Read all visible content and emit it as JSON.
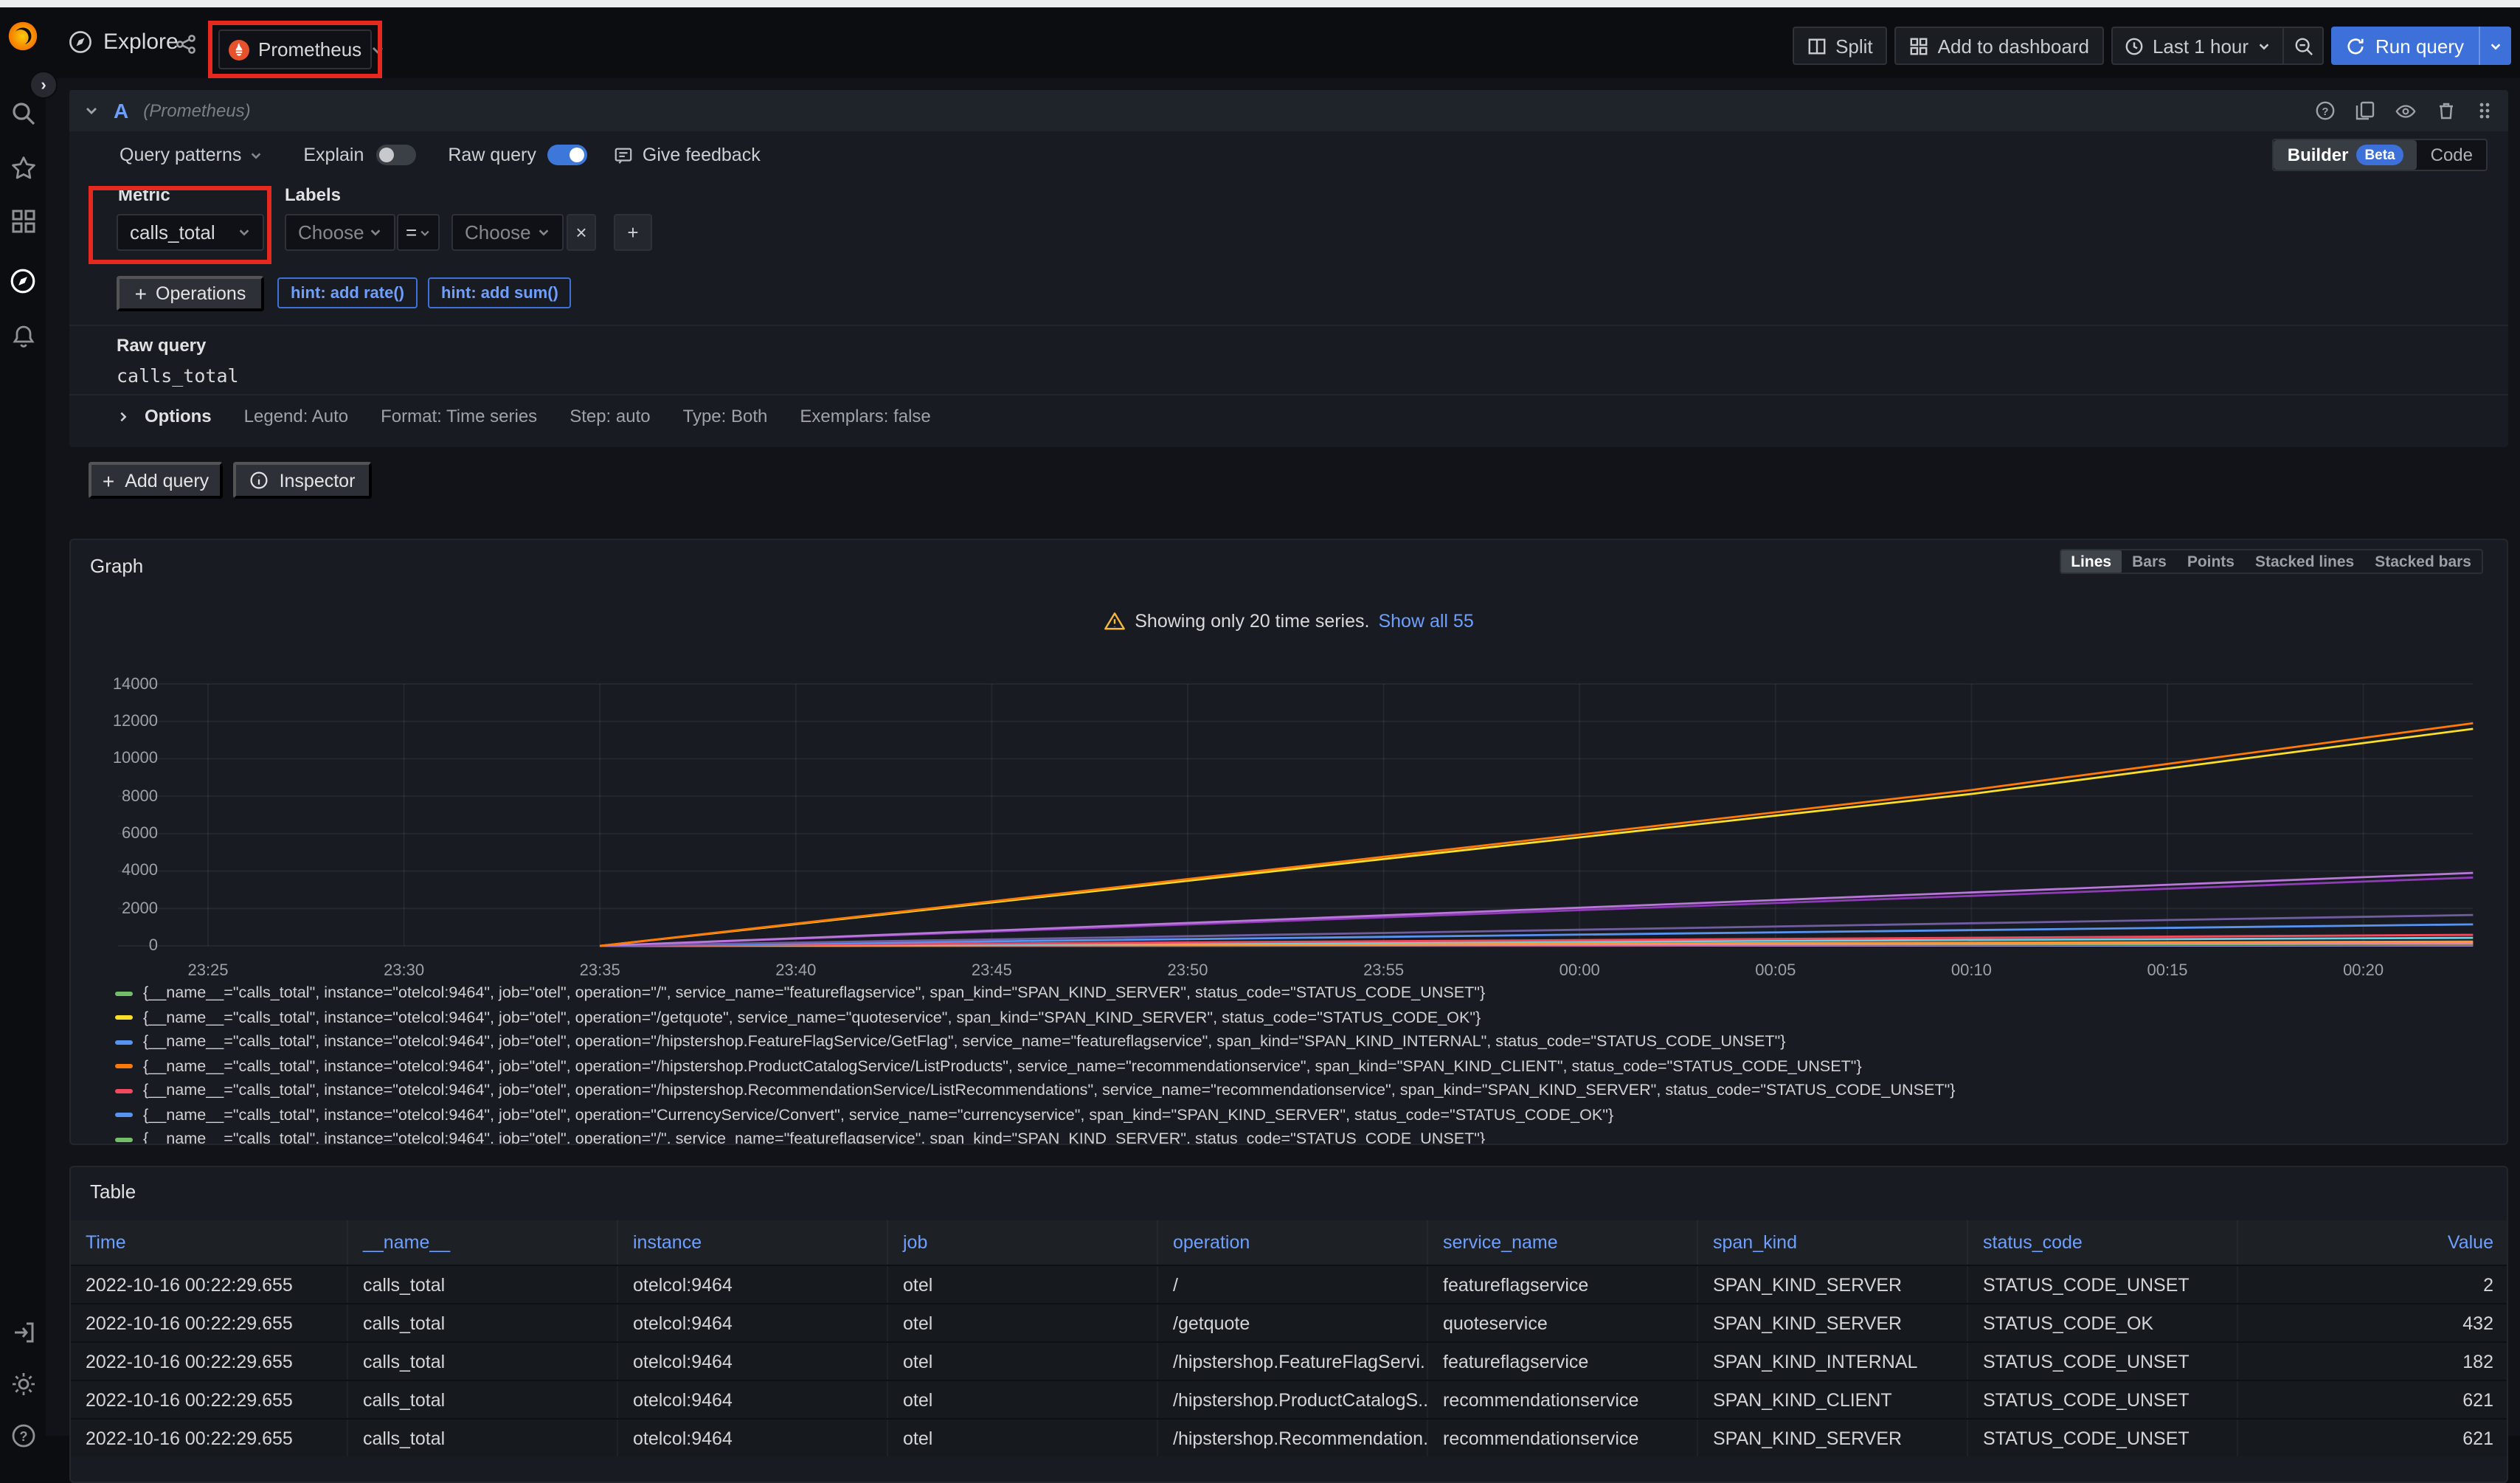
{
  "nav": {
    "title": "Explore",
    "datasource": "Prometheus",
    "split": "Split",
    "add_to_dashboard": "Add to dashboard",
    "time_range": "Last 1 hour",
    "run_query": "Run query"
  },
  "query": {
    "ref_id": "A",
    "ds_hint": "(Prometheus)",
    "query_patterns": "Query patterns",
    "explain": "Explain",
    "raw_query_toggle": "Raw query",
    "give_feedback": "Give feedback",
    "builder": "Builder",
    "beta": "Beta",
    "code": "Code",
    "metric_label": "Metric",
    "metric_value": "calls_total",
    "labels_label": "Labels",
    "choose_placeholder": "Choose",
    "equals": "=",
    "operations": "Operations",
    "hints": [
      "hint: add rate()",
      "hint: add sum()"
    ],
    "raw_query_title": "Raw query",
    "raw_query_text": "calls_total",
    "options_title": "Options",
    "options_summary": [
      "Legend: Auto",
      "Format: Time series",
      "Step: auto",
      "Type: Both",
      "Exemplars: false"
    ],
    "add_query": "Add query",
    "inspector": "Inspector"
  },
  "graph": {
    "title": "Graph",
    "modes": [
      "Lines",
      "Bars",
      "Points",
      "Stacked lines",
      "Stacked bars"
    ],
    "active_mode": "Lines",
    "warning_text": "Showing only 20 time series.",
    "warning_link": "Show all 55",
    "legend_partial_row": true,
    "legend": [
      {
        "color": "#73BF69",
        "text": "{__name__=\"calls_total\", instance=\"otelcol:9464\", job=\"otel\", operation=\"/\", service_name=\"featureflagservice\", span_kind=\"SPAN_KIND_SERVER\", status_code=\"STATUS_CODE_UNSET\"}"
      },
      {
        "color": "#FADE2A",
        "text": "{__name__=\"calls_total\", instance=\"otelcol:9464\", job=\"otel\", operation=\"/getquote\", service_name=\"quoteservice\", span_kind=\"SPAN_KIND_SERVER\", status_code=\"STATUS_CODE_OK\"}"
      },
      {
        "color": "#5794F2",
        "text": "{__name__=\"calls_total\", instance=\"otelcol:9464\", job=\"otel\", operation=\"/hipstershop.FeatureFlagService/GetFlag\", service_name=\"featureflagservice\", span_kind=\"SPAN_KIND_INTERNAL\", status_code=\"STATUS_CODE_UNSET\"}"
      },
      {
        "color": "#FF780A",
        "text": "{__name__=\"calls_total\", instance=\"otelcol:9464\", job=\"otel\", operation=\"/hipstershop.ProductCatalogService/ListProducts\", service_name=\"recommendationservice\", span_kind=\"SPAN_KIND_CLIENT\", status_code=\"STATUS_CODE_UNSET\"}"
      },
      {
        "color": "#F2495C",
        "text": "{__name__=\"calls_total\", instance=\"otelcol:9464\", job=\"otel\", operation=\"/hipstershop.RecommendationService/ListRecommendations\", service_name=\"recommendationservice\", span_kind=\"SPAN_KIND_SERVER\", status_code=\"STATUS_CODE_UNSET\"}"
      },
      {
        "color": "#5794F2",
        "text": "{__name__=\"calls_total\", instance=\"otelcol:9464\", job=\"otel\", operation=\"CurrencyService/Convert\", service_name=\"currencyservice\", span_kind=\"SPAN_KIND_SERVER\", status_code=\"STATUS_CODE_OK\"}"
      }
    ]
  },
  "chart_data": {
    "type": "line",
    "title": "Graph",
    "x_ticks": [
      "23:25",
      "23:30",
      "23:35",
      "23:40",
      "23:45",
      "23:50",
      "23:55",
      "00:00",
      "00:05",
      "00:10",
      "00:15",
      "00:20"
    ],
    "x_tick_minutes": [
      0,
      5,
      10,
      15,
      20,
      25,
      30,
      35,
      40,
      45,
      50,
      55
    ],
    "y_ticks": [
      14000,
      12000,
      10000,
      8000,
      6000,
      4000,
      2000,
      0
    ],
    "ylim": [
      0,
      14000
    ],
    "domain_minutes": [
      -2.3,
      57.8
    ],
    "grid": true,
    "legend_position": "bottom",
    "note": "counter series, ~0 until 23:35 then rising roughly linearly to value at 00:22",
    "series": [
      {
        "label": "orange (ListProducts client)",
        "color": "#FF780A",
        "start_min": 10,
        "end_min": 57.8,
        "end_value": 11900,
        "mid": {
          "min": 45,
          "frac": 0.7
        }
      },
      {
        "label": "yellow (/getquote quoteservice)",
        "color": "#FADE2A",
        "start_min": 10,
        "end_min": 57.8,
        "end_value": 11600,
        "mid": {
          "min": 45,
          "frac": 0.7
        }
      },
      {
        "label": "purple",
        "color": "#B877D9",
        "start_min": 10,
        "end_min": 57.8,
        "end_value": 3900
      },
      {
        "label": "dark purple",
        "color": "#8F3BB8",
        "start_min": 10,
        "end_min": 57.8,
        "end_value": 3650
      },
      {
        "label": "violet",
        "color": "#705DA0",
        "start_min": 10,
        "end_min": 57.8,
        "end_value": 1650
      },
      {
        "label": "blue (CurrencyService/Convert)",
        "color": "#5794F2",
        "start_min": 10,
        "end_min": 57.8,
        "end_value": 1150
      },
      {
        "label": "red (ListRecommendations)",
        "color": "#F2495C",
        "start_min": 10,
        "end_min": 57.8,
        "end_value": 590
      },
      {
        "label": "cyan",
        "color": "#6ED0E0",
        "start_min": 10,
        "end_min": 57.8,
        "end_value": 430
      },
      {
        "label": "light orange",
        "color": "#FF9830",
        "start_min": 10,
        "end_min": 57.8,
        "end_value": 230
      },
      {
        "label": "pink",
        "color": "#E685B5",
        "start_min": 10,
        "end_min": 57.8,
        "end_value": 160
      },
      {
        "label": "green (featureflagservice /)",
        "color": "#73BF69",
        "start_min": 10,
        "end_min": 57.8,
        "end_value": 110
      },
      {
        "label": "dark red",
        "color": "#C4162A",
        "start_min": 10,
        "end_min": 57.8,
        "end_value": 70
      },
      {
        "label": "light blue",
        "color": "#8AB8FF",
        "start_min": 10,
        "end_min": 57.8,
        "end_value": 45
      },
      {
        "label": "light purple",
        "color": "#CA95E5",
        "start_min": 10,
        "end_min": 57.8,
        "end_value": 25
      }
    ]
  },
  "table": {
    "title": "Table",
    "columns": [
      "Time",
      "__name__",
      "instance",
      "job",
      "operation",
      "service_name",
      "span_kind",
      "status_code",
      "Value"
    ],
    "rows": [
      [
        "2022-10-16 00:22:29.655",
        "calls_total",
        "otelcol:9464",
        "otel",
        "/",
        "featureflagservice",
        "SPAN_KIND_SERVER",
        "STATUS_CODE_UNSET",
        "2"
      ],
      [
        "2022-10-16 00:22:29.655",
        "calls_total",
        "otelcol:9464",
        "otel",
        "/getquote",
        "quoteservice",
        "SPAN_KIND_SERVER",
        "STATUS_CODE_OK",
        "432"
      ],
      [
        "2022-10-16 00:22:29.655",
        "calls_total",
        "otelcol:9464",
        "otel",
        "/hipstershop.FeatureFlagServi...",
        "featureflagservice",
        "SPAN_KIND_INTERNAL",
        "STATUS_CODE_UNSET",
        "182"
      ],
      [
        "2022-10-16 00:22:29.655",
        "calls_total",
        "otelcol:9464",
        "otel",
        "/hipstershop.ProductCatalogS...",
        "recommendationservice",
        "SPAN_KIND_CLIENT",
        "STATUS_CODE_UNSET",
        "621"
      ],
      [
        "2022-10-16 00:22:29.655",
        "calls_total",
        "otelcol:9464",
        "otel",
        "/hipstershop.Recommendation...",
        "recommendationservice",
        "SPAN_KIND_SERVER",
        "STATUS_CODE_UNSET",
        "621"
      ]
    ]
  },
  "colors": {
    "annotation_red": "#e5291e",
    "link_blue": "#6e9fff",
    "run_button_blue": "#3d71d9",
    "warning_yellow": "#f5b73d"
  }
}
